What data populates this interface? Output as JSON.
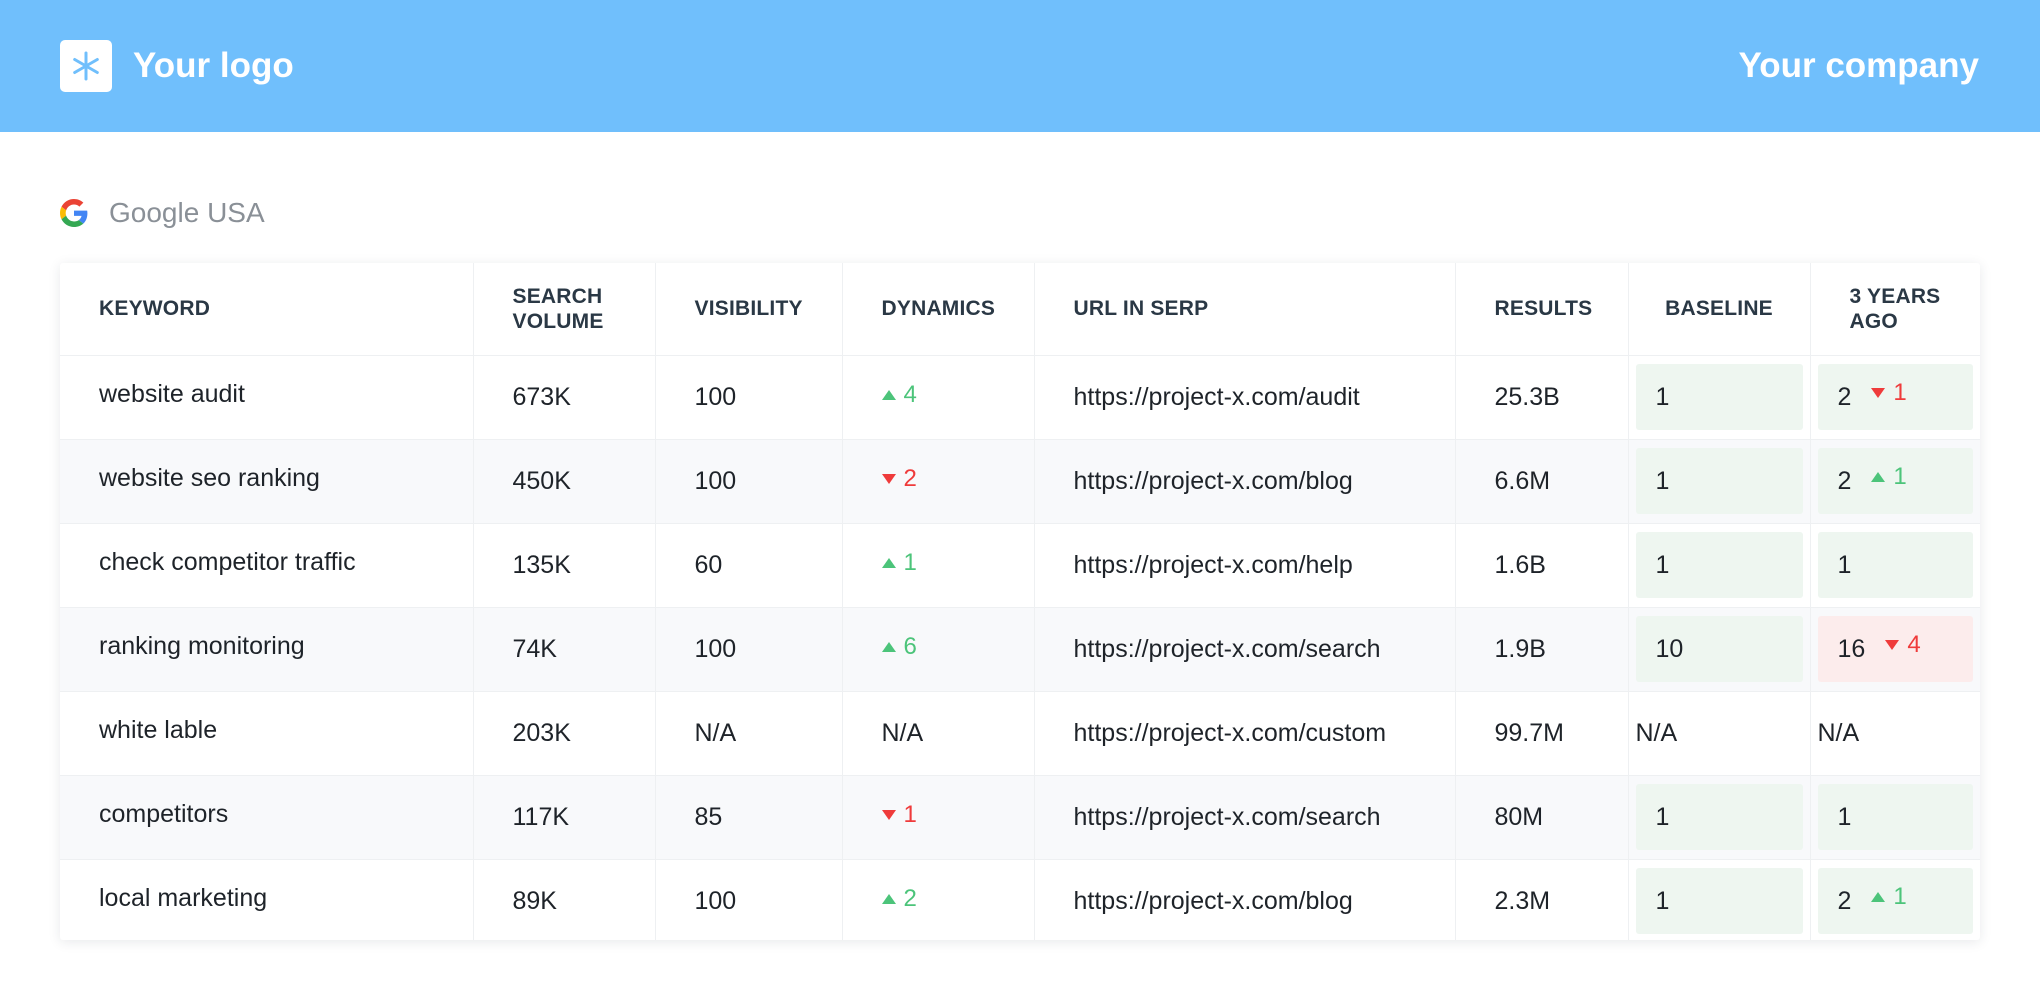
{
  "header": {
    "logo_icon": "asterisk-icon",
    "logo_text": "Your logo",
    "company": "Your company",
    "background": "#70bffc"
  },
  "engine": {
    "icon": "google-g-icon",
    "label": "Google USA"
  },
  "table": {
    "columns": [
      "KEYWORD",
      "SEARCH VOLUME",
      "VISIBILITY",
      "DYNAMICS",
      "URL IN SERP",
      "RESULTS",
      "BASELINE",
      "3 YEARS AGO"
    ],
    "rows": [
      {
        "keyword": "website audit",
        "volume": "673K",
        "visibility": "100",
        "dynamics": {
          "dir": "up",
          "value": "4"
        },
        "url": "https://project-x.com/audit",
        "results": "25.3B",
        "baseline": {
          "value": "1",
          "tone": "green"
        },
        "ago": {
          "value": "2",
          "tone": "green",
          "dir": "down",
          "change": "1"
        }
      },
      {
        "keyword": "website seo ranking",
        "volume": "450K",
        "visibility": "100",
        "dynamics": {
          "dir": "down",
          "value": "2"
        },
        "url": "https://project-x.com/blog",
        "results": "6.6M",
        "baseline": {
          "value": "1",
          "tone": "green"
        },
        "ago": {
          "value": "2",
          "tone": "green",
          "dir": "up",
          "change": "1"
        }
      },
      {
        "keyword": "check competitor traffic",
        "volume": "135K",
        "visibility": "60",
        "dynamics": {
          "dir": "up",
          "value": "1"
        },
        "url": "https://project-x.com/help",
        "results": "1.6B",
        "baseline": {
          "value": "1",
          "tone": "green"
        },
        "ago": {
          "value": "1",
          "tone": "green"
        }
      },
      {
        "keyword": "ranking monitoring",
        "volume": "74K",
        "visibility": "100",
        "dynamics": {
          "dir": "up",
          "value": "6"
        },
        "url": "https://project-x.com/search",
        "results": "1.9B",
        "baseline": {
          "value": "10",
          "tone": "green"
        },
        "ago": {
          "value": "16",
          "tone": "red",
          "dir": "down",
          "change": "4"
        }
      },
      {
        "keyword": "white lable",
        "volume": "203K",
        "visibility": "N/A",
        "dynamics": {
          "text": "N/A"
        },
        "url": "https://project-x.com/custom",
        "results": "99.7M",
        "baseline": {
          "value": "N/A"
        },
        "ago": {
          "value": "N/A"
        }
      },
      {
        "keyword": "competitors",
        "volume": "117K",
        "visibility": "85",
        "dynamics": {
          "dir": "down",
          "value": "1"
        },
        "url": "https://project-x.com/search",
        "results": "80M",
        "baseline": {
          "value": "1",
          "tone": "green"
        },
        "ago": {
          "value": "1",
          "tone": "green"
        }
      },
      {
        "keyword": "local marketing",
        "volume": "89K",
        "visibility": "100",
        "dynamics": {
          "dir": "up",
          "value": "2"
        },
        "url": "https://project-x.com/blog",
        "results": "2.3M",
        "baseline": {
          "value": "1",
          "tone": "green"
        },
        "ago": {
          "value": "2",
          "tone": "green",
          "dir": "up",
          "change": "1"
        }
      }
    ]
  },
  "colors": {
    "up": "#4cc47a",
    "down": "#ef3b3b",
    "chip_green": "#eef6f0",
    "chip_red": "#fcecec"
  }
}
